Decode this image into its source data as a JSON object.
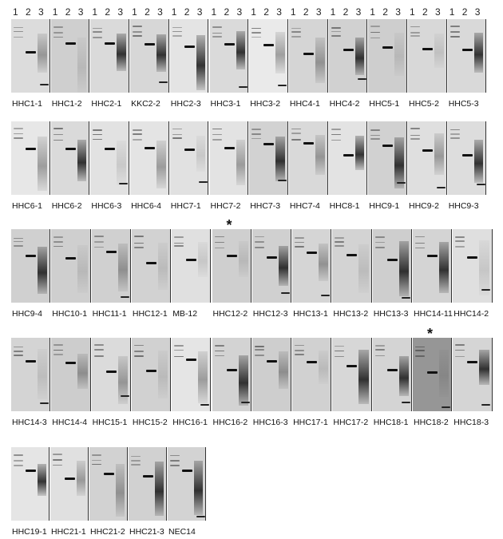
{
  "lane_numbers": [
    "1",
    "2",
    "3"
  ],
  "annotation_marker": "*",
  "rows": [
    {
      "panels": [
        "HHC1-1",
        "HHC1-2",
        "HHC2-1",
        "KKC2-2",
        "HHC2-3",
        "HHC3-1",
        "HHC3-2",
        "HHC4-1",
        "HHC4-2",
        "HHC5-1",
        "HHC5-2",
        "HHC5-3"
      ],
      "starred": []
    },
    {
      "panels": [
        "HHC6-1",
        "HHC6-2",
        "HHC6-3",
        "HHC6-4",
        "HHC7-1",
        "HHC7-2",
        "HHC7-3",
        "HHC7-4",
        "HHC8-1",
        "HHC9-1",
        "HHC9-2",
        "HHC9-3"
      ],
      "starred": []
    },
    {
      "panels": [
        "HHC9-4",
        "HHC10-1",
        "HHC11-1",
        "HHC12-1",
        "MB-12",
        "HHC12-2",
        "HHC12-3",
        "HHC13-1",
        "HHC13-2",
        "HHC13-3",
        "HHC14-11",
        "HHC14-2"
      ],
      "starred": [
        "HHC12-2"
      ]
    },
    {
      "panels": [
        "HHC14-3",
        "HHC14-4",
        "HHC15-1",
        "HHC15-2",
        "HHC16-1",
        "HHC16-2",
        "HHC16-3",
        "HHC17-1",
        "HHC17-2",
        "HHC18-1",
        "HHC18-2",
        "HHC18-3"
      ],
      "starred": [
        "HHC18-2"
      ]
    },
    {
      "panels": [
        "HHC19-1",
        "HHC21-1",
        "HHC21-2",
        "HHC21-3",
        "NEC14"
      ],
      "starred": []
    }
  ]
}
